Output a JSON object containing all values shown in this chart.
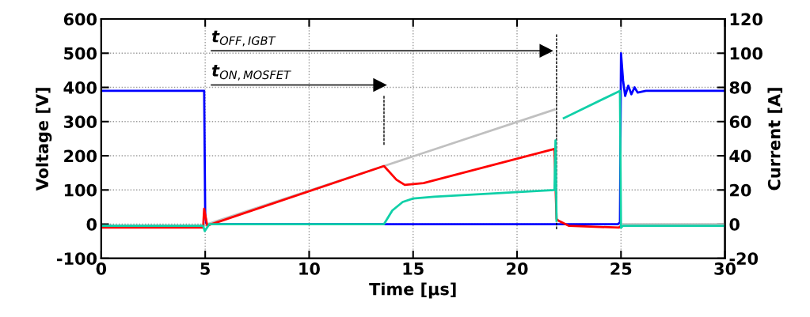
{
  "chart_data": {
    "type": "line",
    "xlabel": "Time [µs]",
    "ylabel": "Voltage [V]",
    "y2label": "Current [A]",
    "xlim": [
      0,
      30
    ],
    "xticks": [
      0,
      5,
      10,
      15,
      20,
      25,
      30
    ],
    "ylim": [
      -100,
      600
    ],
    "yticks": [
      -100,
      0,
      100,
      200,
      300,
      400,
      500,
      600
    ],
    "y2lim": [
      -20,
      120
    ],
    "y2ticks": [
      -20,
      0,
      20,
      40,
      60,
      80,
      100,
      120
    ],
    "grid": true,
    "marker": "none",
    "line_style": "solid",
    "series": [
      {
        "color": "#c0c0c0",
        "axis": "y2",
        "x": [
          0,
          4.9,
          5.1,
          13.6,
          21.8,
          21.85,
          25.0,
          25.1,
          30
        ],
        "values": [
          -1,
          -1,
          0,
          34,
          67,
          null,
          null,
          0,
          0
        ]
      },
      {
        "color": "#ff0000",
        "axis": "y2",
        "x": [
          0,
          4.9,
          4.95,
          5.1,
          5.3,
          13.6,
          14.2,
          14.6,
          15.5,
          21.8,
          21.9,
          22.0,
          22.5,
          24.9,
          25.0
        ],
        "values": [
          -2,
          -2,
          9,
          -1,
          0,
          34,
          26,
          23,
          24,
          44,
          3,
          2,
          -1,
          -2,
          -1
        ]
      },
      {
        "color": "#10d0a8",
        "axis": "y2",
        "x": [
          0,
          4.9,
          4.98,
          5.2,
          13.6,
          14.0,
          14.5,
          15.0,
          16,
          21.8,
          21.85,
          21.9,
          22.2,
          22.25,
          24.95,
          25.0,
          25.1,
          30
        ],
        "values": [
          -1,
          -1,
          -4,
          0,
          0,
          8,
          13,
          15,
          16,
          20,
          49,
          2,
          null,
          62,
          78,
          -2,
          -1,
          -1
        ]
      },
      {
        "color": "#0000ff",
        "axis": "y",
        "x": [
          0,
          4.95,
          5.0,
          5.05,
          5.2,
          24.85,
          24.95,
          25.0,
          25.1,
          25.2,
          25.35,
          25.5,
          25.65,
          25.8,
          26.2,
          30
        ],
        "values": [
          390,
          390,
          30,
          0,
          0,
          0,
          5,
          500,
          420,
          375,
          405,
          380,
          400,
          385,
          390,
          390
        ]
      },
      {
        "color": "#000000",
        "axis": "y",
        "marker": "triangle",
        "x": [
          5.3,
          21.4
        ],
        "values": [
          507,
          507
        ]
      },
      {
        "color": "#000000",
        "axis": "y",
        "marker": "triangle",
        "x": [
          5.3,
          13.4
        ],
        "values": [
          407,
          407
        ]
      },
      {
        "color": "#000000",
        "axis": "y",
        "line_style": "dashed",
        "x": [
          21.9,
          21.9
        ],
        "values": [
          555,
          -15
        ]
      },
      {
        "color": "#000000",
        "axis": "y",
        "line_style": "dashed",
        "x": [
          13.6,
          13.6
        ],
        "values": [
          375,
          230
        ]
      }
    ],
    "annotations": [
      "t$_{OFF,IGBT}$",
      "t$_{ON,MOSFET}$"
    ]
  }
}
